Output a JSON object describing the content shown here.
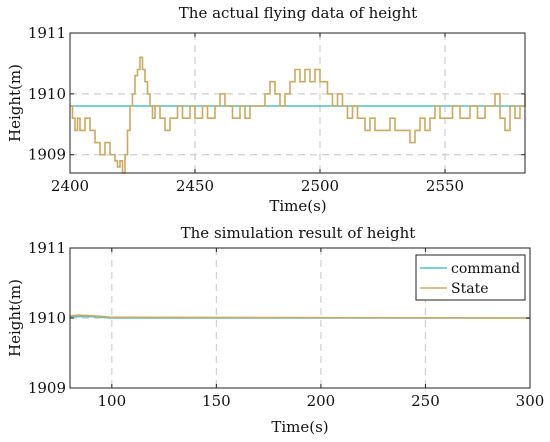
{
  "colors": {
    "command": "#4fc3c8",
    "state": "#c9aa62"
  },
  "chart_data": [
    {
      "type": "line",
      "title": "The actual flying data of height",
      "xlabel": "Time(s)",
      "ylabel": "Height(m)",
      "xlim": [
        2400,
        2582
      ],
      "ylim": [
        1908.7,
        1911
      ],
      "xticks": [
        2400,
        2450,
        2500,
        2550
      ],
      "yticks": [
        1909,
        1910,
        1911
      ],
      "grid": true,
      "legend": null,
      "series": [
        {
          "key": "command",
          "step": false,
          "x": [
            2400,
            2582
          ],
          "y": [
            1909.8,
            1909.8
          ]
        },
        {
          "key": "state",
          "step": true,
          "x": [
            2400,
            2401,
            2402,
            2403,
            2404,
            2406,
            2408,
            2410,
            2412,
            2414,
            2416,
            2418,
            2419,
            2420,
            2421,
            2422,
            2423,
            2424,
            2425,
            2426,
            2427,
            2428,
            2429,
            2430,
            2431,
            2432,
            2433,
            2434,
            2436,
            2438,
            2440,
            2443,
            2445,
            2448,
            2450,
            2453,
            2455,
            2458,
            2460,
            2462,
            2465,
            2468,
            2470,
            2472,
            2475,
            2478,
            2480,
            2482,
            2484,
            2486,
            2488,
            2490,
            2492,
            2494,
            2496,
            2498,
            2500,
            2503,
            2505,
            2507,
            2509,
            2511,
            2513,
            2515,
            2518,
            2520,
            2522,
            2525,
            2528,
            2530,
            2533,
            2536,
            2538,
            2540,
            2542,
            2544,
            2546,
            2548,
            2550,
            2553,
            2556,
            2560,
            2563,
            2566,
            2568,
            2570,
            2572,
            2574,
            2576,
            2578,
            2580,
            2582
          ],
          "y": [
            1909.8,
            1909.6,
            1909.4,
            1909.6,
            1909.4,
            1909.6,
            1909.4,
            1909.2,
            1909.0,
            1909.2,
            1909.0,
            1908.9,
            1908.8,
            1908.9,
            1908.7,
            1909.0,
            1909.4,
            1909.8,
            1910.0,
            1910.3,
            1910.4,
            1910.6,
            1910.4,
            1910.2,
            1910.0,
            1909.8,
            1909.6,
            1909.8,
            1909.6,
            1909.4,
            1909.6,
            1909.8,
            1909.6,
            1909.8,
            1909.6,
            1909.8,
            1909.6,
            1909.8,
            1910.0,
            1909.8,
            1909.6,
            1909.8,
            1909.6,
            1909.8,
            1909.8,
            1910.0,
            1910.2,
            1910.0,
            1909.8,
            1910.0,
            1910.2,
            1910.4,
            1910.2,
            1910.4,
            1910.2,
            1910.4,
            1910.2,
            1910.0,
            1909.8,
            1910.0,
            1909.8,
            1909.6,
            1909.8,
            1909.6,
            1909.4,
            1909.6,
            1909.4,
            1909.4,
            1909.6,
            1909.4,
            1909.4,
            1909.2,
            1909.4,
            1909.6,
            1909.4,
            1909.6,
            1909.8,
            1909.6,
            1909.6,
            1909.8,
            1909.6,
            1909.8,
            1909.6,
            1909.8,
            1909.8,
            1910.0,
            1909.6,
            1909.4,
            1909.8,
            1909.6,
            1909.8,
            1910.0
          ]
        }
      ]
    },
    {
      "type": "line",
      "title": "The simulation result of height",
      "xlabel": "Time(s)",
      "ylabel": "Height(m)",
      "xlim": [
        80,
        300
      ],
      "ylim": [
        1909,
        1911
      ],
      "xticks": [
        100,
        150,
        200,
        250,
        300
      ],
      "yticks": [
        1909,
        1910,
        1911
      ],
      "grid": true,
      "legend": "top-right",
      "series": [
        {
          "key": "command",
          "name": "command",
          "step": false,
          "x": [
            80,
            90,
            100,
            300
          ],
          "y": [
            1910.02,
            1910.02,
            1910.0,
            1910.0
          ]
        },
        {
          "key": "state",
          "name": "State",
          "step": false,
          "x": [
            80,
            84,
            92,
            100,
            300
          ],
          "y": [
            1910.03,
            1910.04,
            1910.03,
            1910.01,
            1910.0
          ]
        }
      ]
    }
  ]
}
